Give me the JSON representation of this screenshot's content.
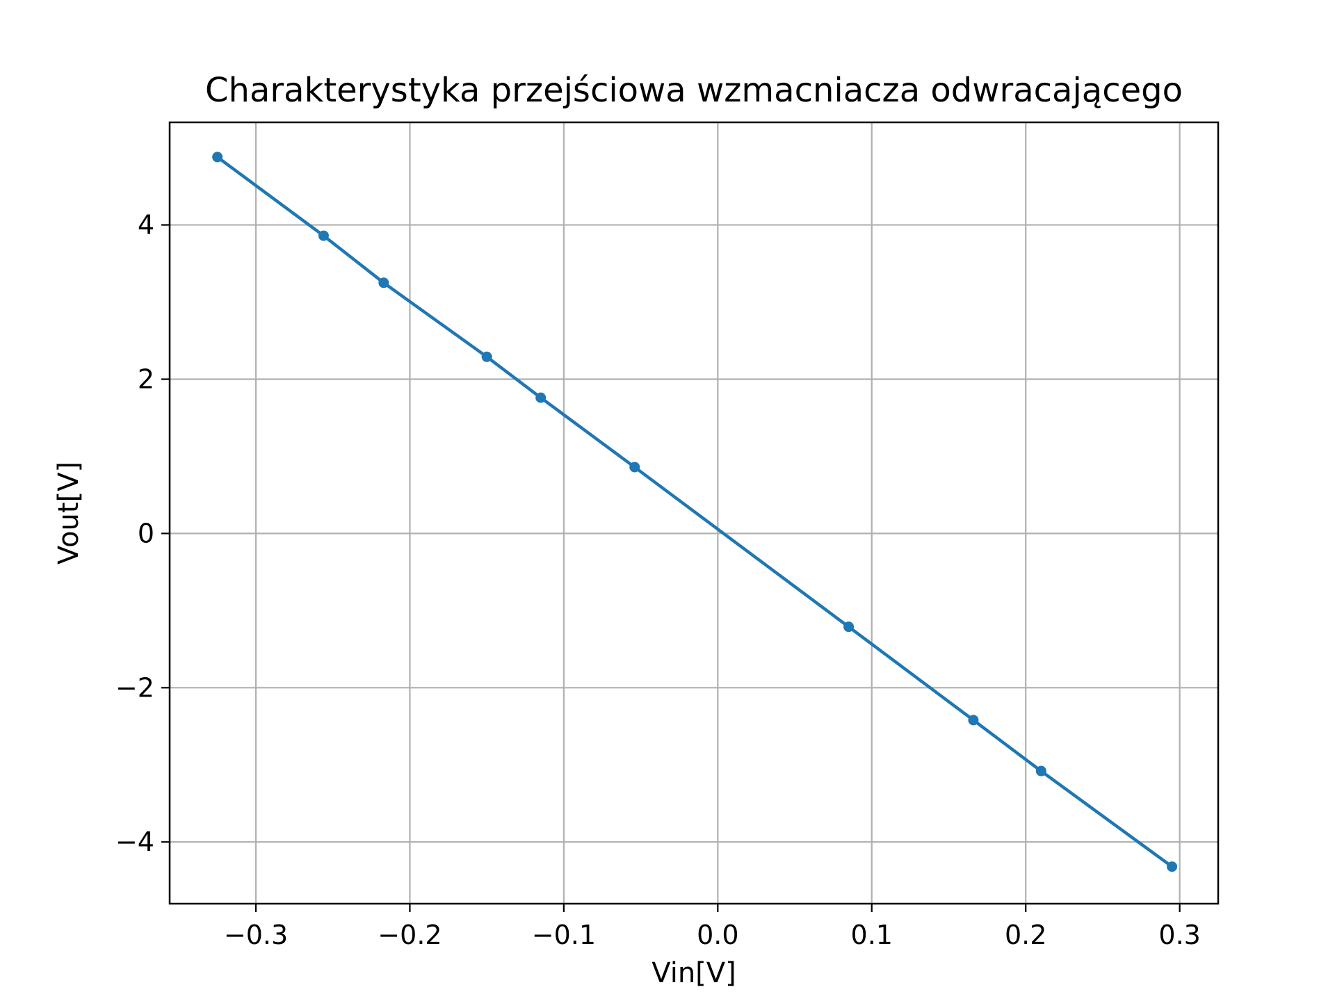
{
  "chart_data": {
    "type": "line",
    "title": "Charakterystyka przejściowa wzmacniacza odwracającego",
    "xlabel": "Vin[V]",
    "ylabel": "Vout[V]",
    "xlim": [
      -0.356,
      0.325
    ],
    "ylim": [
      -4.8,
      5.33
    ],
    "grid": true,
    "x_ticks": [
      {
        "value": -0.3,
        "label": "−0.3"
      },
      {
        "value": -0.2,
        "label": "−0.2"
      },
      {
        "value": -0.1,
        "label": "−0.1"
      },
      {
        "value": 0.0,
        "label": "0.0"
      },
      {
        "value": 0.1,
        "label": "0.1"
      },
      {
        "value": 0.2,
        "label": "0.2"
      },
      {
        "value": 0.3,
        "label": "0.3"
      }
    ],
    "y_ticks": [
      {
        "value": -4,
        "label": "−4"
      },
      {
        "value": -2,
        "label": "−2"
      },
      {
        "value": 0,
        "label": "0"
      },
      {
        "value": 2,
        "label": "2"
      },
      {
        "value": 4,
        "label": "4"
      }
    ],
    "series": [
      {
        "color": "#1f77b4",
        "marker": "circle",
        "x": [
          -0.325,
          -0.256,
          -0.217,
          -0.15,
          -0.115,
          -0.054,
          0.085,
          0.166,
          0.21,
          0.295
        ],
        "y": [
          4.88,
          3.86,
          3.25,
          2.29,
          1.76,
          0.86,
          -1.21,
          -2.42,
          -3.08,
          -4.32
        ]
      }
    ]
  }
}
